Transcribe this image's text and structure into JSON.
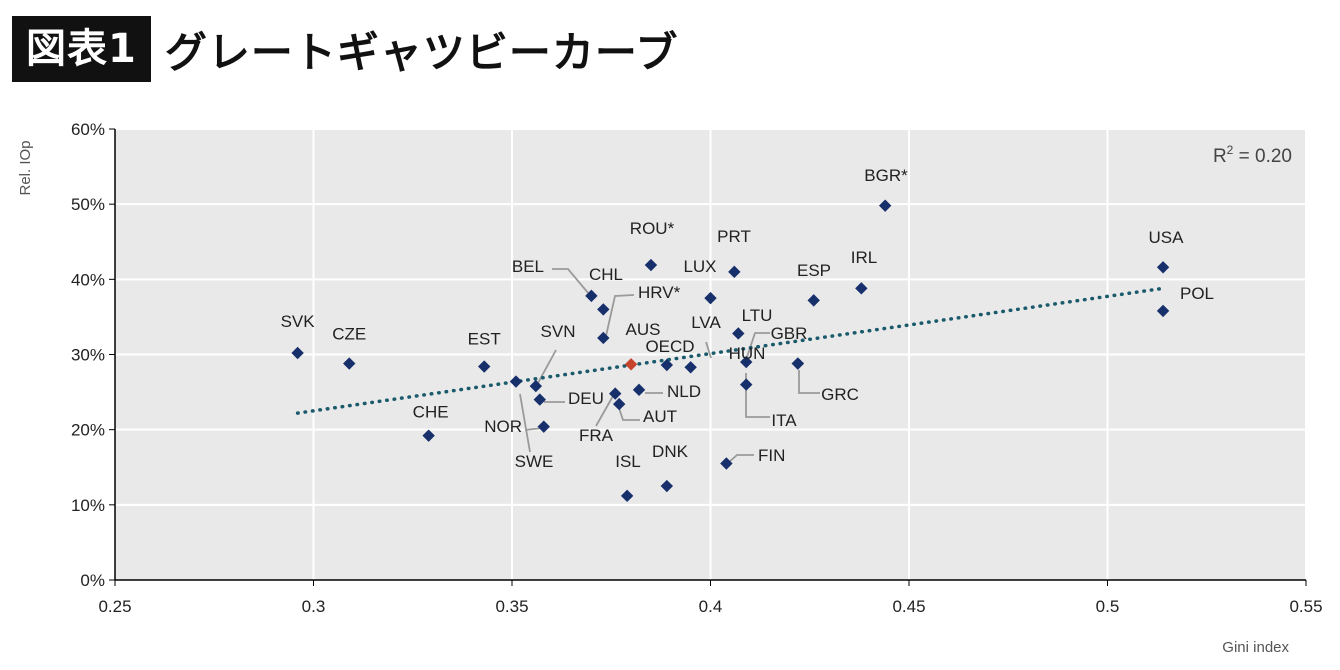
{
  "header": {
    "badge": "図表1",
    "title": "グレートギャツビーカーブ"
  },
  "chart_data": {
    "type": "scatter",
    "xlabel": "Gini index",
    "ylabel": "Rel. IOp",
    "xlim": [
      0.25,
      0.55
    ],
    "ylim": [
      0,
      60
    ],
    "x_ticks": [
      "0.25",
      "0.3",
      "0.35",
      "0.4",
      "0.45",
      "0.5",
      "0.55"
    ],
    "y_ticks": [
      "0%",
      "10%",
      "20%",
      "30%",
      "40%",
      "50%",
      "60%"
    ],
    "grid": true,
    "r2_label": "R",
    "r2_sup": "2",
    "r2_value": " = 0.20",
    "trendline": {
      "x": [
        0.296,
        0.514
      ],
      "y": [
        22.2,
        38.8
      ]
    },
    "colors": {
      "point": "#17306b",
      "highlight": "#c8432b",
      "trend": "#1a5a6b",
      "plot_bg": "#e9e9e9",
      "leader": "#9a9a9a"
    },
    "points": [
      {
        "label": "SVK",
        "x": 0.296,
        "y": 30.2
      },
      {
        "label": "CZE",
        "x": 0.309,
        "y": 28.8
      },
      {
        "label": "CHE",
        "x": 0.329,
        "y": 19.2
      },
      {
        "label": "EST",
        "x": 0.343,
        "y": 28.4
      },
      {
        "label": "SWE",
        "x": 0.351,
        "y": 26.4
      },
      {
        "label": "SVN",
        "x": 0.356,
        "y": 25.8
      },
      {
        "label": "DEU",
        "x": 0.357,
        "y": 24.0
      },
      {
        "label": "NOR",
        "x": 0.358,
        "y": 20.4
      },
      {
        "label": "CHL",
        "x": 0.37,
        "y": 37.8
      },
      {
        "label": "BEL",
        "x": 0.373,
        "y": 36.0
      },
      {
        "label": "HRV*",
        "x": 0.373,
        "y": 32.2
      },
      {
        "label": "FRA",
        "x": 0.376,
        "y": 24.8
      },
      {
        "label": "AUT",
        "x": 0.377,
        "y": 23.4
      },
      {
        "label": "ISL",
        "x": 0.379,
        "y": 11.2
      },
      {
        "label": "AUS",
        "x": 0.38,
        "y": 28.7,
        "highlight": true
      },
      {
        "label": "NLD",
        "x": 0.382,
        "y": 25.3
      },
      {
        "label": "ROU*",
        "x": 0.385,
        "y": 41.9
      },
      {
        "label": "OECD",
        "x": 0.389,
        "y": 28.6
      },
      {
        "label": "DNK",
        "x": 0.389,
        "y": 12.5
      },
      {
        "label": "LVA",
        "x": 0.395,
        "y": 28.3
      },
      {
        "label": "LUX",
        "x": 0.4,
        "y": 37.5
      },
      {
        "label": "PRT",
        "x": 0.406,
        "y": 41.0
      },
      {
        "label": "FIN",
        "x": 0.404,
        "y": 15.5
      },
      {
        "label": "LTU",
        "x": 0.407,
        "y": 32.8
      },
      {
        "label": "HUN",
        "x": 0.409,
        "y": 29.0
      },
      {
        "label": "ITA",
        "x": 0.409,
        "y": 26.0
      },
      {
        "label": "GBR",
        "x": 0.422,
        "y": 28.8
      },
      {
        "label": "GRC",
        "x": 0.422,
        "y": 28.8
      },
      {
        "label": "ESP",
        "x": 0.426,
        "y": 37.2
      },
      {
        "label": "IRL",
        "x": 0.438,
        "y": 38.8
      },
      {
        "label": "BGR*",
        "x": 0.444,
        "y": 49.8
      },
      {
        "label": "USA",
        "x": 0.514,
        "y": 41.6
      },
      {
        "label": "POL",
        "x": 0.514,
        "y": 35.8
      }
    ]
  }
}
